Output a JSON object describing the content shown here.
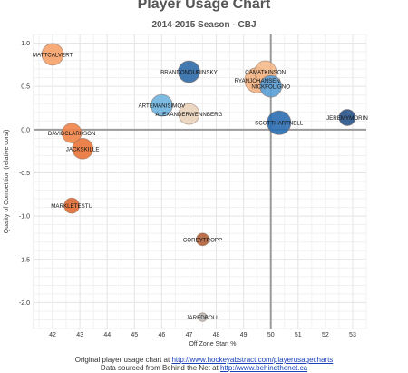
{
  "chart_data": {
    "type": "scatter",
    "title": "Player Usage Chart",
    "subtitle": "2014-2015 Season - CBJ",
    "xlabel": "Off Zone Start %",
    "ylabel": "Quality of Competition (relative corsi)",
    "xlim": [
      41.3,
      53.5
    ],
    "ylim": [
      -2.3,
      1.1
    ],
    "xticks": [
      42,
      43,
      44,
      45,
      46,
      47,
      48,
      49,
      50,
      51,
      52,
      53
    ],
    "yticks": [
      1.0,
      0.5,
      0.0,
      -0.5,
      -1.0,
      -1.5,
      -2.0
    ],
    "ytick_labels": [
      "1.0",
      "0.5",
      "0.0",
      "-0.5",
      "-1.0",
      "-1.5",
      "-2.0"
    ],
    "reference_lines": {
      "x": 50,
      "y": 0
    },
    "grid": true,
    "points": [
      {
        "name": "MATTCALVERT",
        "x": 42.0,
        "y": 0.87,
        "size": 1.0,
        "color": "#f5a26a"
      },
      {
        "name": "BRANDONDUBINSKY",
        "x": 47.0,
        "y": 0.67,
        "size": 1.0,
        "color": "#2e6aa9"
      },
      {
        "name": "CAMATKINSON",
        "x": 49.8,
        "y": 0.67,
        "size": 1.0,
        "color": "#f4b98b"
      },
      {
        "name": "RYANJOHANSEN",
        "x": 49.5,
        "y": 0.57,
        "size": 1.15,
        "color": "#f2b283"
      },
      {
        "name": "NICKFOLIGNO",
        "x": 50.0,
        "y": 0.5,
        "size": 1.0,
        "color": "#5b9fd6"
      },
      {
        "name": "ARTEMANISIMOV",
        "x": 46.0,
        "y": 0.28,
        "size": 1.0,
        "color": "#6fb4e0"
      },
      {
        "name": "ALEXANDERWENNBERG",
        "x": 47.0,
        "y": 0.18,
        "size": 0.95,
        "color": "#ead3bd"
      },
      {
        "name": "SCOTTHARTNELL",
        "x": 50.3,
        "y": 0.08,
        "size": 1.1,
        "color": "#2a6db0"
      },
      {
        "name": "JEREMYMORIN",
        "x": 52.8,
        "y": 0.14,
        "size": 0.75,
        "color": "#27548a"
      },
      {
        "name": "DAVIDCLARKSON",
        "x": 42.7,
        "y": -0.04,
        "size": 0.9,
        "color": "#ef8448"
      },
      {
        "name": "JACKSKILLE",
        "x": 43.1,
        "y": -0.22,
        "size": 0.95,
        "color": "#e9743a"
      },
      {
        "name": "MARKLETESTU",
        "x": 42.7,
        "y": -0.88,
        "size": 0.7,
        "color": "#e06a32"
      },
      {
        "name": "COREYTROPP",
        "x": 47.5,
        "y": -1.27,
        "size": 0.58,
        "color": "#b0603a"
      },
      {
        "name": "JAREDBOLL",
        "x": 47.5,
        "y": -2.17,
        "size": 0.4,
        "color": "#bbbbbb"
      }
    ]
  },
  "footer": {
    "line1_prefix": "Original player usage chart at ",
    "line1_link": "http://www.hockeyabstract.com/playerusagecharts",
    "line2_prefix": "Data sourced from Behind the Net at ",
    "line2_link": "http://www.behindthenet.ca"
  }
}
